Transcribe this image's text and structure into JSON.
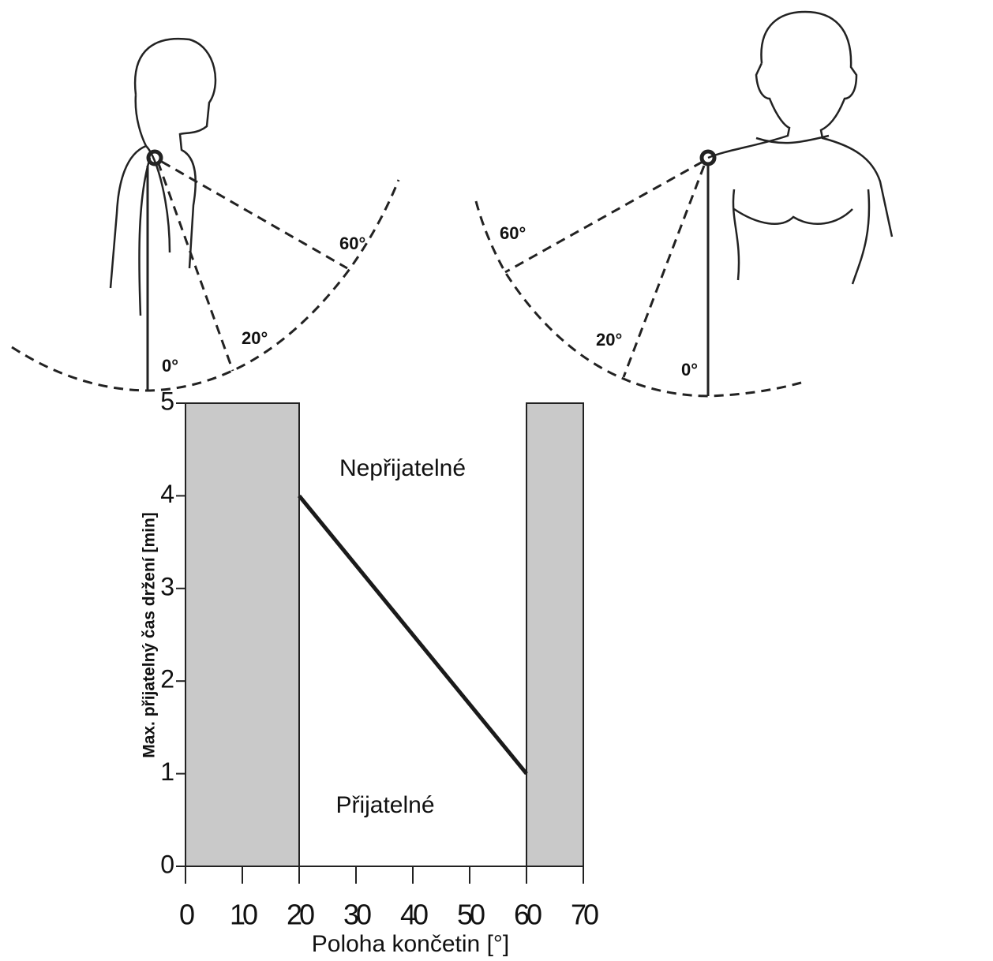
{
  "chart_data": {
    "type": "line",
    "x": [
      20,
      60
    ],
    "values": [
      4,
      1
    ],
    "color": "#1a1a1a",
    "shaded_ranges": [
      [
        0,
        20
      ],
      [
        60,
        70
      ]
    ],
    "shade_color": "#c9c9c9",
    "xlim": [
      0,
      70
    ],
    "ylim": [
      0,
      5
    ],
    "xticks": [
      0,
      10,
      20,
      30,
      40,
      50,
      60,
      70
    ],
    "yticks": [
      0,
      1,
      2,
      3,
      4,
      5
    ],
    "xlabel": "Poloha končetin [°]",
    "ylabel": "Max. přijatelný čas držení [min]",
    "annotations": [
      "Nepřijatelné",
      "Přijatelné"
    ],
    "illustration_labels": [
      "60°",
      "20°",
      "0°",
      "60°",
      "20°",
      "0°"
    ]
  }
}
